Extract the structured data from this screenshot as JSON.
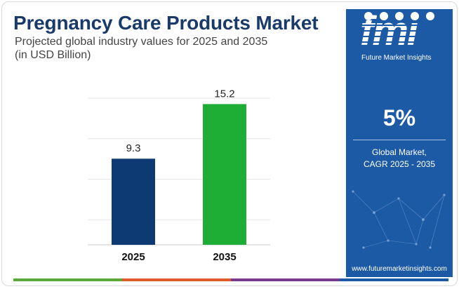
{
  "title": "Pregnancy Care Products Market",
  "subtitle_line1": "Projected global industry values for 2025 and 2035",
  "subtitle_line2": "(in USD Billion)",
  "chart_data": {
    "type": "bar",
    "categories": [
      "2025",
      "2035"
    ],
    "values": [
      9.3,
      15.2
    ],
    "data_labels": [
      "9.3",
      "15.2"
    ],
    "bar_colors": [
      "#0e3a73",
      "#1fae35"
    ],
    "ylim": [
      0,
      17.5
    ],
    "grid": true,
    "title": "",
    "xlabel": "",
    "ylabel": ""
  },
  "brand": {
    "logo_text": "fmi",
    "logo_subtitle": "Future Market Insights",
    "url": "www.futuremarketinsights.com"
  },
  "stat": {
    "value": "5%",
    "label_line1": "Global Market,",
    "label_line2": "CAGR 2025 - 2035"
  },
  "colors": {
    "sidebar_bg": "#1d5aa6",
    "title": "#1a3b6a",
    "bottom_stripe": [
      "#5aa83a",
      "#e05a2a",
      "#7a3a8c",
      "#1d5aa6"
    ]
  }
}
